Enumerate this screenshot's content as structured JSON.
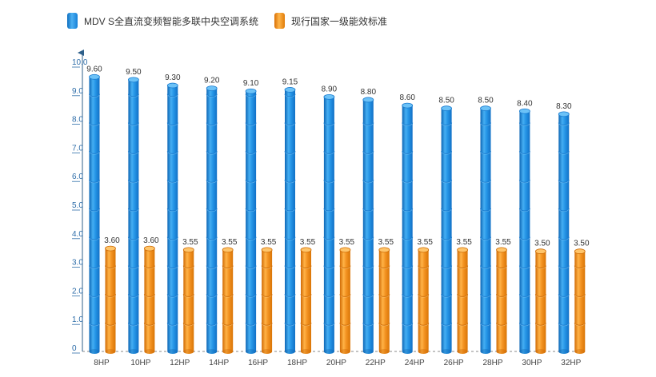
{
  "legend": {
    "series_1": "MDV S全直流变频智能多联中央空调系统",
    "series_2": "现行国家一级能效标准"
  },
  "colors": {
    "series_1": "#1f8fe3",
    "series_2": "#f08c12",
    "axis": "#2d5f8a",
    "tick_label": "#2c6ca8",
    "value_label": "#333333"
  },
  "chart_data": {
    "type": "bar",
    "categories": [
      "8HP",
      "10HP",
      "12HP",
      "14HP",
      "16HP",
      "18HP",
      "20HP",
      "22HP",
      "24HP",
      "26HP",
      "28HP",
      "30HP",
      "32HP"
    ],
    "series": [
      {
        "name": "MDV S全直流变频智能多联中央空调系统",
        "values": [
          9.6,
          9.5,
          9.3,
          9.2,
          9.1,
          9.15,
          8.9,
          8.8,
          8.6,
          8.5,
          8.5,
          8.4,
          8.3
        ],
        "labels": [
          "9.60",
          "9.50",
          "9.30",
          "9.20",
          "9.10",
          "9.15",
          "8.90",
          "8.80",
          "8.60",
          "8.50",
          "8.50",
          "8.40",
          "8.30"
        ]
      },
      {
        "name": "现行国家一级能效标准",
        "values": [
          3.6,
          3.6,
          3.55,
          3.55,
          3.55,
          3.55,
          3.55,
          3.55,
          3.55,
          3.55,
          3.55,
          3.5,
          3.5
        ],
        "labels": [
          "3.60",
          "3.60",
          "3.55",
          "3.55",
          "3.55",
          "3.55",
          "3.55",
          "3.55",
          "3.55",
          "3.55",
          "3.55",
          "3.50",
          "3.50"
        ]
      }
    ],
    "yticks": [
      {
        "value": 0,
        "label": "0"
      },
      {
        "value": 1,
        "label": "1.0"
      },
      {
        "value": 2,
        "label": "2.0"
      },
      {
        "value": 3,
        "label": "3.0"
      },
      {
        "value": 4,
        "label": "4.0"
      },
      {
        "value": 5,
        "label": "5.0"
      },
      {
        "value": 6,
        "label": "6.0"
      },
      {
        "value": 7,
        "label": "7.0"
      },
      {
        "value": 8,
        "label": "8.0"
      },
      {
        "value": 9,
        "label": "9.0"
      },
      {
        "value": 10,
        "label": "10.0"
      }
    ],
    "ylim": [
      0,
      10
    ],
    "title": "",
    "xlabel": "",
    "ylabel": "",
    "grid": false,
    "legend_position": "top"
  }
}
